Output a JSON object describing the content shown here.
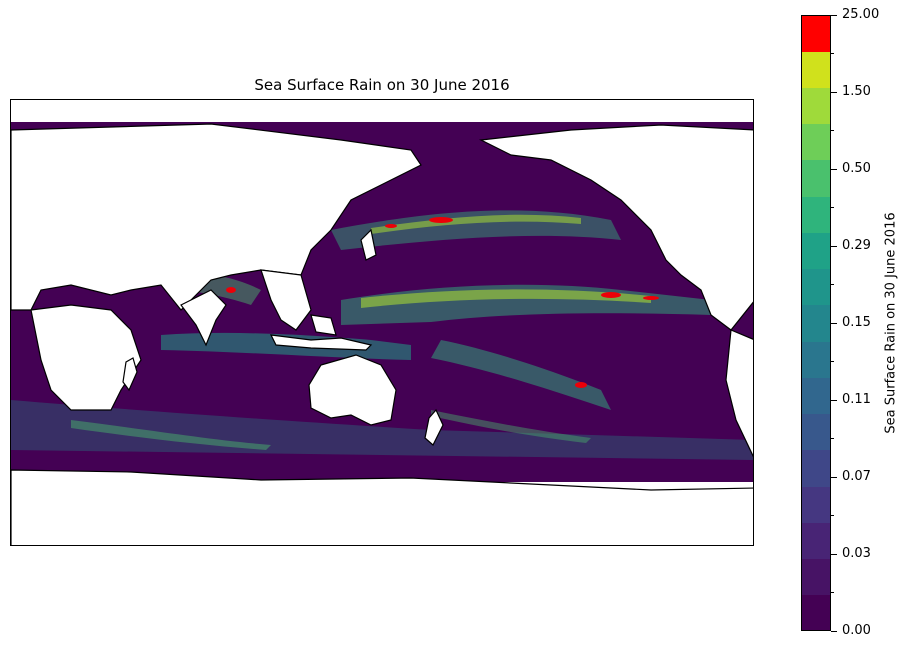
{
  "title": "Sea Surface Rain on 30 June 2016",
  "colorbar": {
    "label": "Sea Surface Rain on 30 June 2016",
    "levels": [
      0.0,
      0.01,
      0.03,
      0.04,
      0.07,
      0.09,
      0.11,
      0.13,
      0.15,
      0.22,
      0.29,
      0.4,
      0.5,
      1.0,
      1.5,
      2.0,
      25.0
    ],
    "tick_labels": [
      "0.00",
      "0.03",
      "0.07",
      "0.11",
      "0.15",
      "0.29",
      "0.50",
      "1.50",
      "25.00"
    ],
    "colors": [
      "#440154",
      "#471365",
      "#482475",
      "#453781",
      "#3f4788",
      "#38588c",
      "#31678e",
      "#2a768e",
      "#23868d",
      "#1f958b",
      "#1fa287",
      "#2fb47c",
      "#4ac16d",
      "#6ece58",
      "#9fda3a",
      "#d0e11c",
      "#ff0000"
    ]
  },
  "map": {
    "projection": "PlateCarree",
    "central_longitude": 180,
    "land_color": "#ffffff",
    "ocean_base_color": "#440154"
  }
}
